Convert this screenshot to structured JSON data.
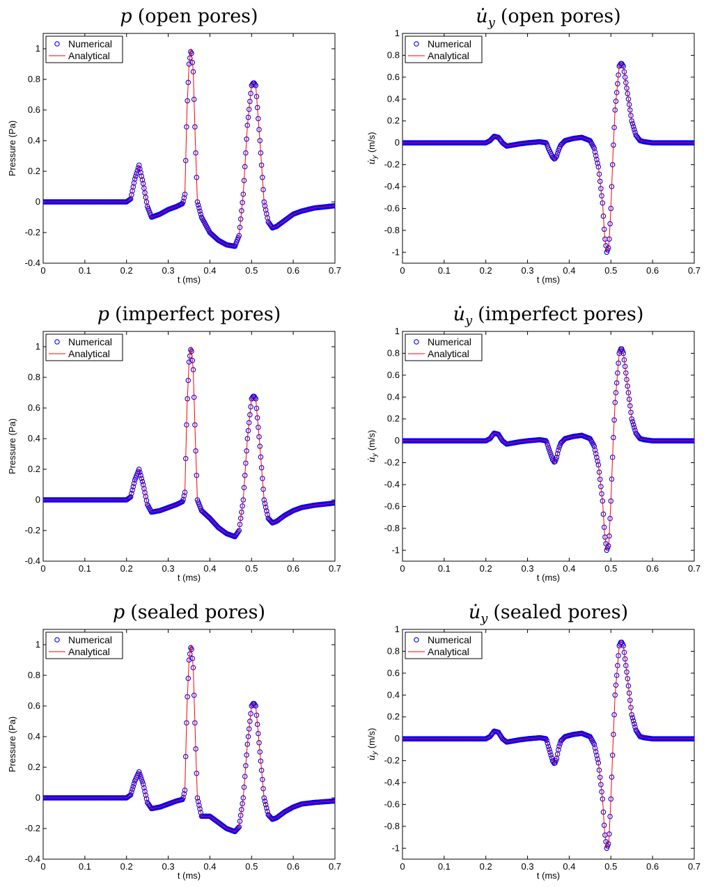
{
  "chart_data": [
    {
      "type": "line",
      "title": "p (open pores)",
      "title_var": "p",
      "title_rest": "(open pores)",
      "xlabel": "t (ms)",
      "ylabel": "Pressure  (Pa)",
      "xlim": [
        0,
        0.7
      ],
      "ylim": [
        -0.4,
        1.1
      ],
      "xticks": [
        0,
        0.1,
        0.2,
        0.3,
        0.4,
        0.5,
        0.6,
        0.7
      ],
      "yticks": [
        -0.4,
        -0.2,
        0,
        0.2,
        0.4,
        0.6,
        0.8,
        1
      ],
      "grid": false,
      "legend_position": "top-left",
      "series": [
        {
          "name": "Numerical",
          "style": "circles",
          "color": "#0000ff"
        },
        {
          "name": "Analytical",
          "style": "line",
          "color": "#ff0000"
        }
      ],
      "x": [
        0,
        0.2,
        0.21,
        0.22,
        0.23,
        0.24,
        0.25,
        0.26,
        0.28,
        0.3,
        0.32,
        0.335,
        0.34,
        0.345,
        0.35,
        0.355,
        0.36,
        0.365,
        0.37,
        0.38,
        0.4,
        0.42,
        0.44,
        0.46,
        0.47,
        0.48,
        0.49,
        0.5,
        0.505,
        0.51,
        0.52,
        0.53,
        0.54,
        0.55,
        0.56,
        0.58,
        0.6,
        0.62,
        0.65,
        0.7
      ],
      "y": [
        0,
        0,
        0.02,
        0.15,
        0.24,
        0.12,
        -0.03,
        -0.1,
        -0.08,
        -0.05,
        -0.03,
        -0.01,
        0.05,
        0.6,
        0.9,
        1.0,
        0.85,
        0.4,
        0.0,
        -0.1,
        -0.2,
        -0.25,
        -0.28,
        -0.29,
        -0.22,
        0.05,
        0.5,
        0.76,
        0.78,
        0.76,
        0.4,
        0.0,
        -0.13,
        -0.17,
        -0.16,
        -0.12,
        -0.08,
        -0.06,
        -0.04,
        -0.025
      ]
    },
    {
      "type": "line",
      "title": "u̇y (open pores)",
      "title_var": "u̇",
      "title_sub": "y",
      "title_rest": "(open pores)",
      "xlabel": "t (ms)",
      "ylabel": "u̇y (m/s)",
      "ylabel_var": "u̇",
      "ylabel_sub": "y",
      "ylabel_rest": "(m/s)",
      "xlim": [
        0,
        0.7
      ],
      "ylim": [
        -1.1,
        1
      ],
      "xticks": [
        0,
        0.1,
        0.2,
        0.3,
        0.4,
        0.5,
        0.6,
        0.7
      ],
      "yticks": [
        -1,
        -0.8,
        -0.6,
        -0.4,
        -0.2,
        0,
        0.2,
        0.4,
        0.6,
        0.8,
        1
      ],
      "grid": false,
      "legend_position": "top-left",
      "series": [
        {
          "name": "Numerical",
          "style": "circles",
          "color": "#0000ff"
        },
        {
          "name": "Analytical",
          "style": "line",
          "color": "#ff0000"
        }
      ],
      "x": [
        0,
        0.2,
        0.21,
        0.22,
        0.23,
        0.24,
        0.25,
        0.28,
        0.3,
        0.33,
        0.345,
        0.35,
        0.36,
        0.365,
        0.37,
        0.375,
        0.38,
        0.39,
        0.41,
        0.43,
        0.45,
        0.46,
        0.47,
        0.48,
        0.485,
        0.49,
        0.495,
        0.5,
        0.505,
        0.51,
        0.52,
        0.525,
        0.53,
        0.54,
        0.55,
        0.56,
        0.57,
        0.58,
        0.6,
        0.7
      ],
      "y": [
        0,
        0,
        0.02,
        0.06,
        0.05,
        0.0,
        -0.03,
        -0.01,
        0.0,
        0.01,
        0.0,
        -0.05,
        -0.13,
        -0.15,
        -0.12,
        -0.06,
        -0.02,
        0.02,
        0.04,
        0.05,
        0.02,
        -0.05,
        -0.22,
        -0.55,
        -0.85,
        -1.0,
        -0.95,
        -0.6,
        -0.1,
        0.3,
        0.7,
        0.73,
        0.7,
        0.45,
        0.2,
        0.07,
        0.02,
        0.01,
        0.0,
        0.0
      ]
    },
    {
      "type": "line",
      "title": "p (imperfect pores)",
      "title_var": "p",
      "title_rest": "(imperfect pores)",
      "xlabel": "t (ms)",
      "ylabel": "Pressure  (Pa)",
      "xlim": [
        0,
        0.7
      ],
      "ylim": [
        -0.4,
        1.1
      ],
      "xticks": [
        0,
        0.1,
        0.2,
        0.3,
        0.4,
        0.5,
        0.6,
        0.7
      ],
      "yticks": [
        -0.4,
        -0.2,
        0,
        0.2,
        0.4,
        0.6,
        0.8,
        1
      ],
      "grid": false,
      "legend_position": "top-left",
      "series": [
        {
          "name": "Numerical",
          "style": "circles",
          "color": "#0000ff"
        },
        {
          "name": "Analytical",
          "style": "line",
          "color": "#ff0000"
        }
      ],
      "x": [
        0,
        0.2,
        0.21,
        0.22,
        0.23,
        0.24,
        0.25,
        0.26,
        0.28,
        0.3,
        0.32,
        0.335,
        0.34,
        0.345,
        0.35,
        0.355,
        0.36,
        0.365,
        0.37,
        0.38,
        0.4,
        0.42,
        0.44,
        0.46,
        0.47,
        0.48,
        0.49,
        0.5,
        0.505,
        0.51,
        0.52,
        0.53,
        0.54,
        0.55,
        0.56,
        0.58,
        0.6,
        0.62,
        0.65,
        0.7
      ],
      "y": [
        0,
        0,
        0.02,
        0.13,
        0.2,
        0.1,
        -0.03,
        -0.08,
        -0.07,
        -0.05,
        -0.03,
        -0.01,
        0.05,
        0.6,
        0.9,
        1.0,
        0.85,
        0.4,
        0.0,
        -0.07,
        -0.12,
        -0.18,
        -0.22,
        -0.24,
        -0.2,
        0.0,
        0.4,
        0.66,
        0.68,
        0.66,
        0.35,
        0.0,
        -0.12,
        -0.15,
        -0.14,
        -0.1,
        -0.07,
        -0.05,
        -0.035,
        -0.02
      ]
    },
    {
      "type": "line",
      "title": "u̇y (imperfect pores)",
      "title_var": "u̇",
      "title_sub": "y",
      "title_rest": "(imperfect pores)",
      "xlabel": "t (ms)",
      "ylabel": "u̇y (m/s)",
      "ylabel_var": "u̇",
      "ylabel_sub": "y",
      "ylabel_rest": "(m/s)",
      "xlim": [
        0,
        0.7
      ],
      "ylim": [
        -1.1,
        1
      ],
      "xticks": [
        0,
        0.1,
        0.2,
        0.3,
        0.4,
        0.5,
        0.6,
        0.7
      ],
      "yticks": [
        -1,
        -0.8,
        -0.6,
        -0.4,
        -0.2,
        0,
        0.2,
        0.4,
        0.6,
        0.8,
        1
      ],
      "grid": false,
      "legend_position": "top-left",
      "series": [
        {
          "name": "Numerical",
          "style": "circles",
          "color": "#0000ff"
        },
        {
          "name": "Analytical",
          "style": "line",
          "color": "#ff0000"
        }
      ],
      "x": [
        0,
        0.2,
        0.21,
        0.22,
        0.23,
        0.24,
        0.25,
        0.28,
        0.3,
        0.33,
        0.345,
        0.35,
        0.36,
        0.365,
        0.37,
        0.375,
        0.38,
        0.39,
        0.41,
        0.43,
        0.45,
        0.46,
        0.47,
        0.48,
        0.485,
        0.49,
        0.495,
        0.5,
        0.505,
        0.51,
        0.52,
        0.525,
        0.53,
        0.54,
        0.55,
        0.56,
        0.57,
        0.58,
        0.6,
        0.7
      ],
      "y": [
        0,
        0,
        0.02,
        0.07,
        0.06,
        0.0,
        -0.03,
        -0.01,
        0.0,
        0.01,
        0.0,
        -0.06,
        -0.17,
        -0.2,
        -0.15,
        -0.07,
        -0.02,
        0.02,
        0.04,
        0.05,
        0.02,
        -0.05,
        -0.22,
        -0.55,
        -0.85,
        -1.0,
        -0.95,
        -0.55,
        -0.05,
        0.35,
        0.8,
        0.85,
        0.8,
        0.5,
        0.2,
        0.07,
        0.02,
        0.01,
        0.0,
        0.0
      ]
    },
    {
      "type": "line",
      "title": "p (sealed pores)",
      "title_var": "p",
      "title_rest": "(sealed pores)",
      "xlabel": "t (ms)",
      "ylabel": "Pressure  (Pa)",
      "xlim": [
        0,
        0.7
      ],
      "ylim": [
        -0.4,
        1.1
      ],
      "xticks": [
        0,
        0.1,
        0.2,
        0.3,
        0.4,
        0.5,
        0.6,
        0.7
      ],
      "yticks": [
        -0.4,
        -0.2,
        0,
        0.2,
        0.4,
        0.6,
        0.8,
        1
      ],
      "grid": false,
      "legend_position": "top-left",
      "series": [
        {
          "name": "Numerical",
          "style": "circles",
          "color": "#0000ff"
        },
        {
          "name": "Analytical",
          "style": "line",
          "color": "#ff0000"
        }
      ],
      "x": [
        0,
        0.2,
        0.21,
        0.22,
        0.23,
        0.24,
        0.25,
        0.26,
        0.28,
        0.3,
        0.32,
        0.335,
        0.34,
        0.345,
        0.35,
        0.355,
        0.36,
        0.365,
        0.37,
        0.38,
        0.4,
        0.42,
        0.44,
        0.46,
        0.47,
        0.48,
        0.49,
        0.5,
        0.505,
        0.51,
        0.52,
        0.53,
        0.54,
        0.55,
        0.56,
        0.58,
        0.6,
        0.62,
        0.65,
        0.7
      ],
      "y": [
        0,
        0,
        0.02,
        0.11,
        0.17,
        0.09,
        -0.03,
        -0.07,
        -0.06,
        -0.04,
        -0.02,
        -0.01,
        0.05,
        0.6,
        0.9,
        1.0,
        0.85,
        0.4,
        0.0,
        -0.12,
        -0.12,
        -0.16,
        -0.2,
        -0.22,
        -0.19,
        0.0,
        0.35,
        0.6,
        0.62,
        0.6,
        0.3,
        0.0,
        -0.11,
        -0.14,
        -0.13,
        -0.09,
        -0.06,
        -0.04,
        -0.03,
        -0.02
      ]
    },
    {
      "type": "line",
      "title": "u̇y (sealed pores)",
      "title_var": "u̇",
      "title_sub": "y",
      "title_rest": "(sealed pores)",
      "xlabel": "t (ms)",
      "ylabel": "u̇y (m/s)",
      "ylabel_var": "u̇",
      "ylabel_sub": "y",
      "ylabel_rest": "(m/s)",
      "xlim": [
        0,
        0.7
      ],
      "ylim": [
        -1.1,
        1
      ],
      "xticks": [
        0,
        0.1,
        0.2,
        0.3,
        0.4,
        0.5,
        0.6,
        0.7
      ],
      "yticks": [
        -1,
        -0.8,
        -0.6,
        -0.4,
        -0.2,
        0,
        0.2,
        0.4,
        0.6,
        0.8,
        1
      ],
      "grid": false,
      "legend_position": "top-left",
      "series": [
        {
          "name": "Numerical",
          "style": "circles",
          "color": "#0000ff"
        },
        {
          "name": "Analytical",
          "style": "line",
          "color": "#ff0000"
        }
      ],
      "x": [
        0,
        0.2,
        0.21,
        0.22,
        0.23,
        0.24,
        0.25,
        0.28,
        0.3,
        0.33,
        0.345,
        0.35,
        0.36,
        0.365,
        0.37,
        0.375,
        0.38,
        0.39,
        0.41,
        0.43,
        0.45,
        0.46,
        0.47,
        0.48,
        0.485,
        0.49,
        0.495,
        0.5,
        0.505,
        0.51,
        0.52,
        0.525,
        0.53,
        0.54,
        0.55,
        0.56,
        0.57,
        0.58,
        0.6,
        0.7
      ],
      "y": [
        0,
        0,
        0.02,
        0.07,
        0.06,
        0.0,
        -0.03,
        -0.01,
        0.0,
        0.01,
        0.0,
        -0.07,
        -0.2,
        -0.23,
        -0.18,
        -0.08,
        -0.02,
        0.02,
        0.04,
        0.05,
        0.02,
        -0.05,
        -0.22,
        -0.55,
        -0.85,
        -1.0,
        -0.95,
        -0.55,
        -0.05,
        0.4,
        0.85,
        0.89,
        0.85,
        0.55,
        0.22,
        0.08,
        0.02,
        0.01,
        0.0,
        0.0
      ]
    }
  ]
}
